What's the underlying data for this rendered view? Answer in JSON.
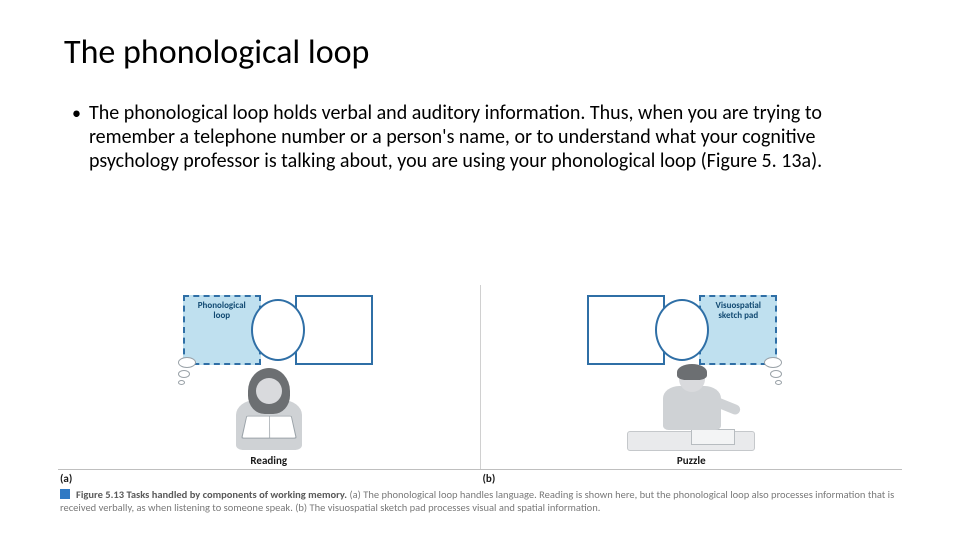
{
  "title": "The phonological loop",
  "bullet": "The phonological loop holds verbal and auditory information. Thus, when you are trying to remember a telephone number or a person's name, or to understand what your cognitive psychology professor is talking about, you are using your phonological loop (Figure 5. 13a).",
  "figure": {
    "panel_a": {
      "box_label": "Phonological loop",
      "caption": "Reading",
      "letter": "(a)"
    },
    "panel_b": {
      "box_label": "Visuospatial sketch pad",
      "caption": "Puzzle",
      "letter": "(b)"
    },
    "caption": {
      "label": "Figure 5.13",
      "title": "Tasks handled by components of working memory.",
      "body": " (a) The phonological loop handles language. Reading is shown here, but the phonological loop also processes information that is received verbally, as when listening to someone speak. (b) The visuospatial sketch pad processes visual and spatial information."
    },
    "colors": {
      "box_border": "#2f6fa6",
      "box_fill": "#bfe0ef",
      "caption_square": "#2f79c4",
      "text_gray": "#7a7a7a"
    }
  }
}
